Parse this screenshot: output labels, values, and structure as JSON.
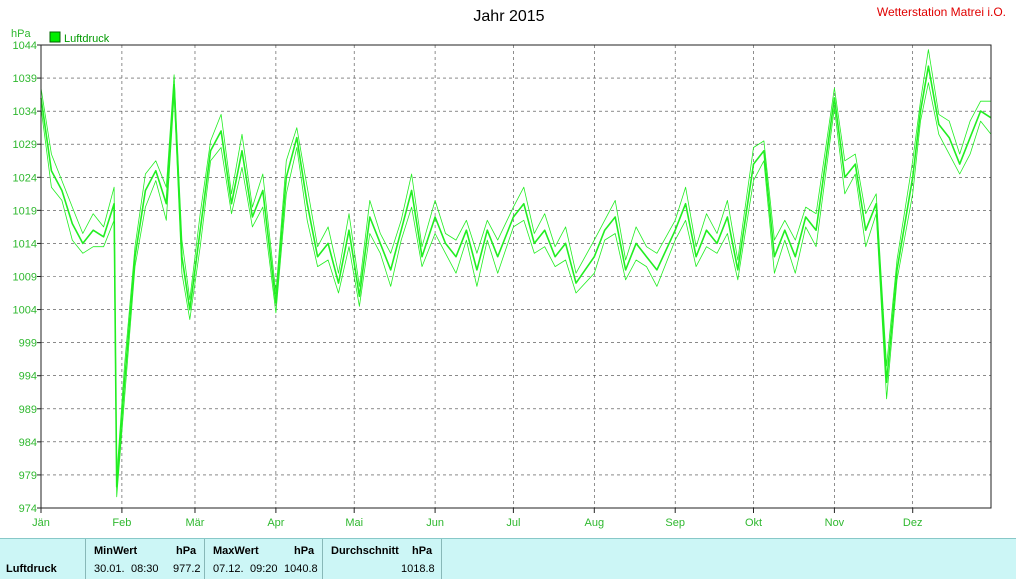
{
  "header": {
    "title": "Jahr 2015",
    "station": "Wetterstation Matrei i.O.",
    "unit": "hPa"
  },
  "legend": {
    "label": "Luftdruck",
    "color": "#00ee00"
  },
  "colors": {
    "series": "#22ee22",
    "grid": "#444444",
    "axis_text": "#2fb82f"
  },
  "chart_data": {
    "type": "line",
    "title": "Jahr 2015",
    "ylabel": "hPa",
    "ylim": [
      974,
      1044
    ],
    "yticks": [
      974,
      979,
      984,
      989,
      994,
      999,
      1004,
      1009,
      1014,
      1019,
      1024,
      1029,
      1034,
      1039,
      1044
    ],
    "xlim": [
      "2015-01-01",
      "2015-12-31"
    ],
    "xticks": [
      {
        "label": "Jän",
        "date": "2015-01-01"
      },
      {
        "label": "Feb",
        "date": "2015-02-01"
      },
      {
        "label": "Mär",
        "date": "2015-03-01"
      },
      {
        "label": "Apr",
        "date": "2015-04-01"
      },
      {
        "label": "Mai",
        "date": "2015-05-01"
      },
      {
        "label": "Jun",
        "date": "2015-06-01"
      },
      {
        "label": "Jul",
        "date": "2015-07-01"
      },
      {
        "label": "Aug",
        "date": "2015-08-01"
      },
      {
        "label": "Sep",
        "date": "2015-09-01"
      },
      {
        "label": "Okt",
        "date": "2015-10-01"
      },
      {
        "label": "Nov",
        "date": "2015-11-01"
      },
      {
        "label": "Dez",
        "date": "2015-12-01"
      }
    ],
    "grid": true,
    "legend_position": "top-left",
    "series": [
      {
        "name": "Luftdruck",
        "color": "#22ee22",
        "x": [
          "2015-01-01",
          "2015-01-05",
          "2015-01-09",
          "2015-01-13",
          "2015-01-17",
          "2015-01-21",
          "2015-01-25",
          "2015-01-29",
          "2015-01-30",
          "2015-02-02",
          "2015-02-06",
          "2015-02-10",
          "2015-02-14",
          "2015-02-18",
          "2015-02-21",
          "2015-02-24",
          "2015-02-27",
          "2015-03-03",
          "2015-03-07",
          "2015-03-11",
          "2015-03-15",
          "2015-03-19",
          "2015-03-23",
          "2015-03-27",
          "2015-04-01",
          "2015-04-05",
          "2015-04-09",
          "2015-04-13",
          "2015-04-17",
          "2015-04-21",
          "2015-04-25",
          "2015-04-29",
          "2015-05-03",
          "2015-05-07",
          "2015-05-11",
          "2015-05-15",
          "2015-05-19",
          "2015-05-23",
          "2015-05-27",
          "2015-06-01",
          "2015-06-05",
          "2015-06-09",
          "2015-06-13",
          "2015-06-17",
          "2015-06-21",
          "2015-06-25",
          "2015-07-01",
          "2015-07-05",
          "2015-07-09",
          "2015-07-13",
          "2015-07-17",
          "2015-07-21",
          "2015-07-25",
          "2015-08-01",
          "2015-08-05",
          "2015-08-09",
          "2015-08-13",
          "2015-08-17",
          "2015-08-21",
          "2015-08-25",
          "2015-09-01",
          "2015-09-05",
          "2015-09-09",
          "2015-09-13",
          "2015-09-17",
          "2015-09-21",
          "2015-09-25",
          "2015-10-01",
          "2015-10-05",
          "2015-10-09",
          "2015-10-13",
          "2015-10-17",
          "2015-10-21",
          "2015-10-25",
          "2015-11-01",
          "2015-11-05",
          "2015-11-09",
          "2015-11-13",
          "2015-11-17",
          "2015-11-21",
          "2015-11-25",
          "2015-12-01",
          "2015-12-04",
          "2015-12-07",
          "2015-12-11",
          "2015-12-15",
          "2015-12-19",
          "2015-12-23",
          "2015-12-27",
          "2015-12-31"
        ],
        "values": [
          1036,
          1025,
          1022,
          1017,
          1014,
          1016,
          1015,
          1020,
          977.2,
          993,
          1012,
          1022,
          1025,
          1020,
          1038,
          1012,
          1004,
          1016,
          1028,
          1031,
          1020,
          1028,
          1018,
          1022,
          1005,
          1024,
          1030,
          1020,
          1012,
          1014,
          1008,
          1016,
          1006,
          1018,
          1014,
          1010,
          1016,
          1022,
          1012,
          1018,
          1014,
          1012,
          1016,
          1010,
          1016,
          1012,
          1018,
          1020,
          1014,
          1016,
          1012,
          1014,
          1008,
          1012,
          1016,
          1018,
          1010,
          1014,
          1012,
          1010,
          1016,
          1020,
          1012,
          1016,
          1014,
          1018,
          1010,
          1026,
          1028,
          1012,
          1016,
          1012,
          1018,
          1016,
          1036,
          1024,
          1026,
          1016,
          1020,
          993,
          1010,
          1024,
          1034,
          1040.8,
          1032,
          1030,
          1026,
          1030,
          1034,
          1033
        ]
      }
    ]
  },
  "stats": {
    "series_label": "Luftdruck",
    "min": {
      "header": "MinWert",
      "unit": "hPa",
      "date": "30.01.",
      "time": "08:30",
      "value": "977.2"
    },
    "max": {
      "header": "MaxWert",
      "unit": "hPa",
      "date": "07.12.",
      "time": "09:20",
      "value": "1040.8"
    },
    "avg": {
      "header": "Durchschnitt",
      "unit": "hPa",
      "value": "1018.8"
    }
  }
}
